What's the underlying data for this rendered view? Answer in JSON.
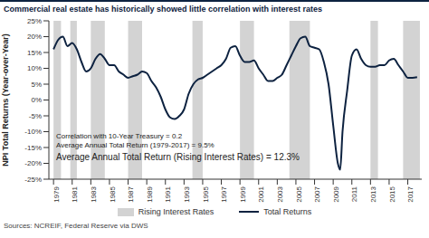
{
  "chart_data": {
    "type": "line",
    "title": "Commercial real estate has historically showed little correlation with interest rates",
    "y_label": "NPI Total Returns (Year-over-Year)",
    "x": [
      1979,
      1979.5,
      1980,
      1980.5,
      1981,
      1981.5,
      1982,
      1982.5,
      1983,
      1983.5,
      1984,
      1984.5,
      1985,
      1985.5,
      1986,
      1986.5,
      1987,
      1987.5,
      1988,
      1988.5,
      1989,
      1989.5,
      1990,
      1990.5,
      1991,
      1991.5,
      1992,
      1992.5,
      1993,
      1993.5,
      1994,
      1994.5,
      1995,
      1995.5,
      1996,
      1996.5,
      1997,
      1997.5,
      1998,
      1998.5,
      1999,
      1999.5,
      2000,
      2000.5,
      2001,
      2001.5,
      2002,
      2002.5,
      2003,
      2003.5,
      2004,
      2004.5,
      2005,
      2005.5,
      2006,
      2006.5,
      2007,
      2007.5,
      2008,
      2008.5,
      2009,
      2009.5,
      2009.75,
      2010,
      2010.5,
      2011,
      2011.5,
      2012,
      2012.5,
      2013,
      2013.5,
      2014,
      2014.5,
      2015,
      2015.5,
      2016,
      2016.5,
      2017,
      2017.5,
      2018
    ],
    "series": [
      {
        "name": "Total Returns",
        "color": "#0d2240",
        "values": [
          16,
          19,
          20,
          17,
          18,
          16,
          12,
          9,
          10,
          13,
          14.5,
          13,
          11,
          11,
          9,
          8,
          7,
          7.5,
          8,
          9,
          8.5,
          6,
          4,
          1,
          -3,
          -5.5,
          -6,
          -5,
          -3,
          2,
          5,
          6.5,
          7,
          8,
          9,
          10,
          11,
          13,
          16.5,
          17,
          14,
          12,
          12,
          12.5,
          10,
          8,
          6,
          6,
          7,
          8,
          11,
          14,
          17,
          19.5,
          20,
          17,
          16.5,
          16,
          12,
          5,
          -8,
          -20,
          -22,
          -10,
          3,
          14,
          16,
          13,
          11,
          10.5,
          10.5,
          11,
          11,
          12.5,
          13,
          11,
          9,
          7,
          7,
          7.2
        ]
      }
    ],
    "shaded_periods": {
      "name": "Rising Interest Rates",
      "color": "#d3d3d3",
      "ranges": [
        [
          1979,
          1979.8
        ],
        [
          1980.8,
          1981.5
        ],
        [
          1983,
          1984.5
        ],
        [
          1987,
          1988.5
        ],
        [
          1993.9,
          1995
        ],
        [
          1999,
          2000.5
        ],
        [
          2004.3,
          2006.5
        ],
        [
          2013,
          2013.8
        ],
        [
          2016.5,
          2018.3
        ]
      ]
    },
    "xlim": [
      1978.5,
      2018.5
    ],
    "xticks": [
      1979,
      1981,
      1983,
      1985,
      1987,
      1989,
      1991,
      1993,
      1995,
      1997,
      1999,
      2001,
      2003,
      2005,
      2007,
      2009,
      2011,
      2013,
      2015,
      2017
    ],
    "ylim": [
      -25,
      25
    ],
    "yticks": [
      {
        "value": -25,
        "label": "-25%"
      },
      {
        "value": -20,
        "label": "-20%"
      },
      {
        "value": -15,
        "label": "-15%"
      },
      {
        "value": -10,
        "label": "-10%"
      },
      {
        "value": -5,
        "label": "-5%"
      },
      {
        "value": 0,
        "label": "0%"
      },
      {
        "value": 5,
        "label": "5%"
      },
      {
        "value": 10,
        "label": "10%"
      },
      {
        "value": 15,
        "label": "15%"
      },
      {
        "value": 20,
        "label": "20%"
      },
      {
        "value": 25,
        "label": "25%"
      }
    ],
    "grid": false,
    "legend": "bottom",
    "annotations": [
      "Correlation with 10-Year Treasury = 0.2",
      "Average Annual Total Return (1979-2017) = 9.5%",
      "Average Annual Total Return (Rising Interest Rates) = 12.3%"
    ],
    "source": "Sources: NCREIF, Federal Reserve via DWS"
  }
}
